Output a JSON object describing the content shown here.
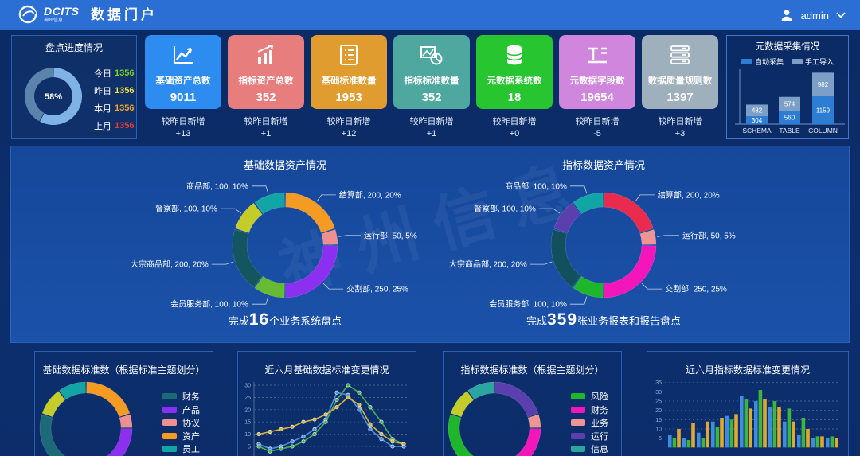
{
  "header": {
    "brand": "DCITS",
    "brand_sub": "神州信息",
    "title": "数据门户",
    "user": "admin"
  },
  "progress_panel": {
    "title": "盘点进度情况",
    "percent_label": "58%",
    "percent_value": 58,
    "ring_colors": {
      "done": "#7fb2e5",
      "rest": "#5b84ad"
    },
    "stats": [
      {
        "label": "今日",
        "value": "1356",
        "color": "#7ed321"
      },
      {
        "label": "昨日",
        "value": "1356",
        "color": "#f0e53d"
      },
      {
        "label": "本月",
        "value": "1356",
        "color": "#f5a623"
      },
      {
        "label": "上月",
        "value": "1356",
        "color": "#e23b3b"
      }
    ]
  },
  "stat_cards": [
    {
      "title": "基础资产总数",
      "value": "9011",
      "color": "#2d8cf0",
      "icon": "trend-chart",
      "delta_label": "较昨日新增",
      "delta": "+13"
    },
    {
      "title": "指标资产总数",
      "value": "352",
      "color": "#e87d7d",
      "icon": "bar-growth",
      "delta_label": "较昨日新增",
      "delta": "+1"
    },
    {
      "title": "基础标准数量",
      "value": "1953",
      "color": "#e09c2e",
      "icon": "checklist",
      "delta_label": "较昨日新增",
      "delta": "+12"
    },
    {
      "title": "指标标准数量",
      "value": "352",
      "color": "#4fa8a0",
      "icon": "image-pie",
      "delta_label": "较昨日新增",
      "delta": "+1"
    },
    {
      "title": "元数据系统数",
      "value": "18",
      "color": "#27c52f",
      "icon": "database",
      "delta_label": "较昨日新增",
      "delta": "+0"
    },
    {
      "title": "元数据字段数",
      "value": "19654",
      "color": "#cf86dc",
      "icon": "field",
      "delta_label": "较昨日新增",
      "delta": "-5"
    },
    {
      "title": "数据质量规则数",
      "value": "1397",
      "color": "#9fb0bd",
      "icon": "server",
      "delta_label": "较昨日新增",
      "delta": "+3"
    }
  ],
  "collect_panel": {
    "title": "元数据采集情况",
    "chart_data": {
      "type": "stacked-bar",
      "categories": [
        "SCHEMA",
        "TABLE",
        "COLUMN"
      ],
      "series": [
        {
          "name": "自动采集",
          "color": "#2d7dd2",
          "values": [
            304,
            560,
            1159
          ]
        },
        {
          "name": "手工导入",
          "color": "#7b9fc7",
          "values": [
            482,
            574,
            982
          ]
        }
      ]
    }
  },
  "asset_panels": {
    "watermark": "神州信息",
    "basic": {
      "title": "基础数据资产情况",
      "summary": {
        "prefix": "完成",
        "number": "16",
        "suffix": "个业务系统盘点"
      },
      "chart_data": {
        "type": "donut",
        "segments": [
          {
            "name": "结算部",
            "value": 200,
            "percent": "20%",
            "color": "#f59a23"
          },
          {
            "name": "运行部",
            "value": 50,
            "percent": "5%",
            "color": "#f08f8f"
          },
          {
            "name": "交割部",
            "value": 250,
            "percent": "25%",
            "color": "#8b2ff0"
          },
          {
            "name": "会员服务部",
            "value": 100,
            "percent": "10%",
            "color": "#66bb33"
          },
          {
            "name": "大宗商品部",
            "value": 200,
            "percent": "20%",
            "color": "#14565f"
          },
          {
            "name": "督察部",
            "value": 100,
            "percent": "10%",
            "color": "#c3cc29"
          },
          {
            "name": "商品部",
            "value": 100,
            "percent": "10%",
            "color": "#12a5a5"
          }
        ]
      }
    },
    "index": {
      "title": "指标数据资产情况",
      "summary": {
        "prefix": "完成",
        "number": "359",
        "suffix": "张业务报表和报告盘点"
      },
      "chart_data": {
        "type": "donut",
        "segments": [
          {
            "name": "结算部",
            "value": 200,
            "percent": "20%",
            "color": "#ea2b4e"
          },
          {
            "name": "运行部",
            "value": 50,
            "percent": "5%",
            "color": "#f09393"
          },
          {
            "name": "交割部",
            "value": 250,
            "percent": "25%",
            "color": "#f516bb"
          },
          {
            "name": "会员服务部",
            "value": 100,
            "percent": "10%",
            "color": "#1eb62a"
          },
          {
            "name": "大宗商品部",
            "value": 200,
            "percent": "20%",
            "color": "#11505c"
          },
          {
            "name": "督察部",
            "value": 100,
            "percent": "10%",
            "color": "#5b3fae"
          },
          {
            "name": "商品部",
            "value": 100,
            "percent": "10%",
            "color": "#12a5a5"
          }
        ]
      }
    }
  },
  "bottom_panels": {
    "basic_standard": {
      "title": "基础数据标准数（根据标准主题划分）",
      "legend": [
        {
          "label": "财务",
          "color": "#1c6a78"
        },
        {
          "label": "产品",
          "color": "#8b2ff0"
        },
        {
          "label": "协议",
          "color": "#f08f8f"
        },
        {
          "label": "资产",
          "color": "#f59a23"
        },
        {
          "label": "员工",
          "color": "#12a5a5"
        }
      ],
      "chart_data": {
        "type": "donut",
        "segments": [
          {
            "value": 20,
            "color": "#f59a23"
          },
          {
            "value": 5,
            "color": "#f08f8f"
          },
          {
            "value": 25,
            "color": "#8b2ff0"
          },
          {
            "value": 30,
            "color": "#1c6a78"
          },
          {
            "value": 10,
            "color": "#c3cc29"
          },
          {
            "value": 10,
            "color": "#12a5a5"
          }
        ]
      }
    },
    "basic_change": {
      "title": "近六月基础数据标准变更情况",
      "chart_data": {
        "type": "line",
        "ylim": [
          0,
          35
        ],
        "yticks": [
          30,
          25,
          20,
          15,
          10,
          5
        ],
        "series": [
          {
            "color": "#4b8fdd",
            "values": [
              6,
              4,
              5,
              7,
              9,
              12,
              16,
              27,
              26,
              20,
              12,
              8,
              5,
              5
            ]
          },
          {
            "color": "#4caf50",
            "values": [
              5,
              3,
              4,
              5,
              7,
              10,
              15,
              24,
              30,
              27,
              21,
              15,
              8,
              6
            ]
          },
          {
            "color": "#d8b437",
            "values": [
              10,
              11,
              12,
              13,
              15,
              16,
              18,
              21,
              25,
              22,
              14,
              10,
              7,
              6
            ]
          }
        ]
      }
    },
    "index_standard": {
      "title": "指标数据标准数（根据主题划分）",
      "legend": [
        {
          "label": "风险",
          "color": "#1eb62a"
        },
        {
          "label": "财务",
          "color": "#f516bb"
        },
        {
          "label": "业务",
          "color": "#f09393"
        },
        {
          "label": "运行",
          "color": "#5b3fae"
        },
        {
          "label": "信息",
          "color": "#2aa5a0"
        }
      ],
      "chart_data": {
        "type": "donut",
        "segments": [
          {
            "value": 20,
            "color": "#5b3fae"
          },
          {
            "value": 5,
            "color": "#f09393"
          },
          {
            "value": 25,
            "color": "#f516bb"
          },
          {
            "value": 30,
            "color": "#1eb62a"
          },
          {
            "value": 10,
            "color": "#c3cc29"
          },
          {
            "value": 10,
            "color": "#2aa5a0"
          }
        ]
      }
    },
    "index_change": {
      "title": "近六月指标数据标准变更情况",
      "chart_data": {
        "type": "grouped-bar",
        "ylim": [
          0,
          35
        ],
        "yticks": [
          35,
          30,
          25,
          20,
          15,
          10,
          5
        ],
        "series": [
          {
            "color": "#3e8ce0",
            "values": [
              7,
              5,
              8,
              14,
              17,
              28,
              25,
              22,
              14,
              7,
              5,
              5
            ]
          },
          {
            "color": "#3fb53f",
            "values": [
              5,
              4,
              5,
              11,
              15,
              26,
              31,
              25,
              21,
              16,
              6,
              6
            ]
          },
          {
            "color": "#e0a92e",
            "values": [
              10,
              13,
              14,
              16,
              18,
              21,
              26,
              22,
              14,
              10,
              6,
              5
            ]
          }
        ]
      }
    }
  }
}
